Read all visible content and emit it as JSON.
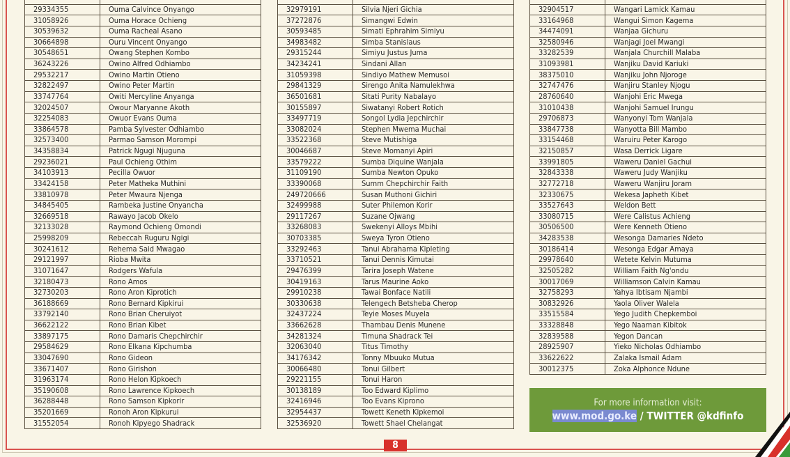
{
  "columns": [
    {
      "rows": [
        [
          "29334355",
          "Ouma Calvince Onyango"
        ],
        [
          "31058926",
          "Ouma Horace Ochieng"
        ],
        [
          "30539632",
          "Ouma Racheal Asano"
        ],
        [
          "30664898",
          "Ouru Vincent Onyango"
        ],
        [
          "30548651",
          "Owang Stephen  Kombo"
        ],
        [
          "36243226",
          "Owino Alfred Odhiambo"
        ],
        [
          "29532217",
          "Owino Martin Otieno"
        ],
        [
          "32822497",
          "Owino Peter Martin"
        ],
        [
          "33747764",
          "Owiti Mercyline Anyanga"
        ],
        [
          "32024507",
          "Owour Maryanne Akoth"
        ],
        [
          "32254083",
          "Owuor Evans Ouma"
        ],
        [
          "33864578",
          "Pamba Sylvester Odhiambo"
        ],
        [
          "32573400",
          "Parmao Samson Morompi"
        ],
        [
          "34358834",
          "Patrick Ngugi Njuguna"
        ],
        [
          "29236021",
          "Paul Ochieng Othim"
        ],
        [
          "34103913",
          "Pecilla  Owuor"
        ],
        [
          "33424158",
          "Peter Matheka Muthini"
        ],
        [
          "33810978",
          "Peter Mwaura Njenga"
        ],
        [
          "34845405",
          "Rambeka Justine Onyancha"
        ],
        [
          "32669518",
          "Rawayo Jacob Okelo"
        ],
        [
          "32133028",
          "Raymond Ochieng Omondi"
        ],
        [
          "25998209",
          "Rebeccah Ruguru Ngigi"
        ],
        [
          "30241612",
          "Rehema Said Mwagao"
        ],
        [
          "29121997",
          "Rioba Mwita"
        ],
        [
          "31071647",
          "Rodgers Wafula"
        ],
        [
          "32180473",
          "Rono Amos"
        ],
        [
          "32730203",
          "Rono Aron Kiprotich"
        ],
        [
          "36188669",
          "Rono Bernard Kipkirui"
        ],
        [
          "33792140",
          "Rono Brian Cheruiyot"
        ],
        [
          "36622122",
          "Rono Brian Kibet"
        ],
        [
          "33897175",
          "Rono Damaris Chepchirchir"
        ],
        [
          "29584629",
          "Rono Elkana Kipchumba"
        ],
        [
          "33047690",
          "Rono Gideon"
        ],
        [
          "33671407",
          "Rono Girishon"
        ],
        [
          "31963174",
          "Rono Helon Kipkoech"
        ],
        [
          "35190608",
          "Rono Lawrence Kipkoech"
        ],
        [
          "36288448",
          "Rono Samson Kipkorir"
        ],
        [
          "35201669",
          "Ronoh Aron Kipkurui"
        ],
        [
          "31552054",
          "Ronoh Kipyego Shadrack"
        ]
      ]
    },
    {
      "rows": [
        [
          "32979191",
          "Silvia Njeri Gichia"
        ],
        [
          "37272876",
          "Simangwi  Edwin"
        ],
        [
          "30593485",
          "Simati Ephrahim Simiyu"
        ],
        [
          "34983482",
          "Simba Stanislaus"
        ],
        [
          "29315244",
          "Simiyu Justus Juma"
        ],
        [
          "34234241",
          "Sindani Allan"
        ],
        [
          "31059398",
          "Sindiyo Mathew Memusoi"
        ],
        [
          "29841329",
          "Sirengo Anita Namulekhwa"
        ],
        [
          "36501681",
          "Sitati Purity Nabalayo"
        ],
        [
          "30155897",
          "Siwatanyi Robert Rotich"
        ],
        [
          "33497719",
          "Songol Lydia Jepchirchir"
        ],
        [
          "33082024",
          "Stephen Mwema Muchai"
        ],
        [
          "33522368",
          "Steve  Mutishiga"
        ],
        [
          "30046687",
          "Steve Momanyi Apiri"
        ],
        [
          "33579222",
          "Sumba Diquine Wanjala"
        ],
        [
          "31109190",
          "Sumba Newton Opuko"
        ],
        [
          "33390068",
          "Summ Chepchirchir Faith"
        ],
        [
          "249720666",
          "Susan Muthoni Gichiri"
        ],
        [
          "32499988",
          "Suter Philemon Korir"
        ],
        [
          "29117267",
          "Suzane Ojwang"
        ],
        [
          "33268083",
          "Swekenyi Alloys Mbihi"
        ],
        [
          "30703385",
          "Sweya Tyron Otieno"
        ],
        [
          "33292463",
          "Tanui Abrahama Kipleting"
        ],
        [
          "33710521",
          "Tanui Dennis Kimutai"
        ],
        [
          "29476399",
          "Tarira Joseph Watene"
        ],
        [
          "30419163",
          "Tarus Maurine Aoko"
        ],
        [
          "29910238",
          "Tawai Bonface Natili"
        ],
        [
          "30330638",
          "Telengech Betsheba Cherop"
        ],
        [
          "32437224",
          "Teyie Moses Muyela"
        ],
        [
          "33662628",
          "Thambau Denis Munene"
        ],
        [
          "34281324",
          "Timuna Shadrack Tei"
        ],
        [
          "32063040",
          "Titus Timothy"
        ],
        [
          "34176342",
          "Tonny Mbuuko Mutua"
        ],
        [
          "30066480",
          "Tonui Gilbert"
        ],
        [
          "29221155",
          "Tonui Haron"
        ],
        [
          "30138189",
          "Too Edward Kiplimo"
        ],
        [
          "32416946",
          "Too Evans Kiprono"
        ],
        [
          "32954437",
          "Towett Keneth Kipkemoi"
        ],
        [
          "32536920",
          "Towett Shael Chelangat"
        ]
      ]
    },
    {
      "rows": [
        [
          "32904517",
          "Wangari Lamick Kamau"
        ],
        [
          "33164968",
          "Wangui Simon Kagema"
        ],
        [
          "34474091",
          "Wanjaa  Gichuru"
        ],
        [
          "32580946",
          "Wanjagi Joel Mwangi"
        ],
        [
          "33282539",
          "Wanjala Churchill Malaba"
        ],
        [
          "31093981",
          "Wanjiku David Kariuki"
        ],
        [
          "38375010",
          "Wanjiku John Njoroge"
        ],
        [
          "32747476",
          "Wanjiru Stanley Njogu"
        ],
        [
          "28760640",
          "Wanjohi Eric Mwega"
        ],
        [
          "31010438",
          "Wanjohi Samuel Irungu"
        ],
        [
          "29706873",
          "Wanyonyi Tom Wanjala"
        ],
        [
          "33847738",
          "Wanyotta Bill Mambo"
        ],
        [
          "33154468",
          "Waruiru Peter Karogo"
        ],
        [
          "32150857",
          "Wasa Derrick Ligare"
        ],
        [
          "33991805",
          "Waweru Daniel Gachui"
        ],
        [
          "32843338",
          "Waweru Judy Wanjiku"
        ],
        [
          "32772718",
          "Waweru Wanjiru Joram"
        ],
        [
          "32330675",
          "Wekesa Japheth Kibet"
        ],
        [
          "33527643",
          "Weldon Bett"
        ],
        [
          "33080715",
          "Were Calistus Achieng"
        ],
        [
          "30506500",
          "Were Kenneth Otieno"
        ],
        [
          "34283538",
          "Wesonga Damaries Ndeto"
        ],
        [
          "30186414",
          "Wesonga Edgar Amaya"
        ],
        [
          "29978640",
          "Wetete Kelvin Mutuma"
        ],
        [
          "32505282",
          "William Faith Ng'ondu"
        ],
        [
          "30017069",
          "Williamson Calvin Kamau"
        ],
        [
          "32758293",
          "Yahya Ibtisam Njambi"
        ],
        [
          "30832926",
          "Yaola Oliver Walela"
        ],
        [
          "33515584",
          "Yego Judith Chepkemboi"
        ],
        [
          "33328848",
          "Yego Naaman Kibitok"
        ],
        [
          "32839588",
          "Yegon Dancan"
        ],
        [
          "28925907",
          "Yieko Nicholas Odhiambo"
        ],
        [
          "33622622",
          "Zalaka Ismail Adam"
        ],
        [
          "30012375",
          "Zoka Alphonce Ndune"
        ]
      ]
    }
  ],
  "info_box": {
    "line1": "For more information visit:",
    "url": "www.mod.go.ke",
    "separator": " / ",
    "twitter": "TWITTER @kdfinfo"
  },
  "page_number": "8",
  "colors": {
    "border_red": "#d9534f",
    "info_green": "#6e9a3a",
    "page_bg": "#f9f5e7"
  }
}
